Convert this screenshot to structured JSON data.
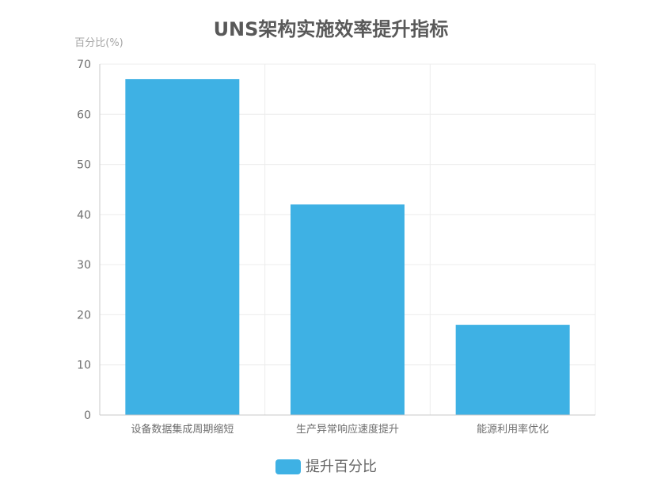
{
  "chart_data": {
    "type": "bar",
    "title": "UNS架构实施效率提升指标",
    "ylabel": "百分比(%)",
    "xlabel": "",
    "categories": [
      "设备数据集成周期缩短",
      "生产异常响应速度提升",
      "能源利用率优化"
    ],
    "series": [
      {
        "name": "提升百分比",
        "values": [
          67,
          42,
          18
        ],
        "color": "#3eb1e4"
      }
    ],
    "ylim": [
      0,
      70
    ],
    "yticks": [
      0,
      10,
      20,
      30,
      40,
      50,
      60,
      70
    ],
    "grid": true,
    "legend_position": "bottom"
  }
}
